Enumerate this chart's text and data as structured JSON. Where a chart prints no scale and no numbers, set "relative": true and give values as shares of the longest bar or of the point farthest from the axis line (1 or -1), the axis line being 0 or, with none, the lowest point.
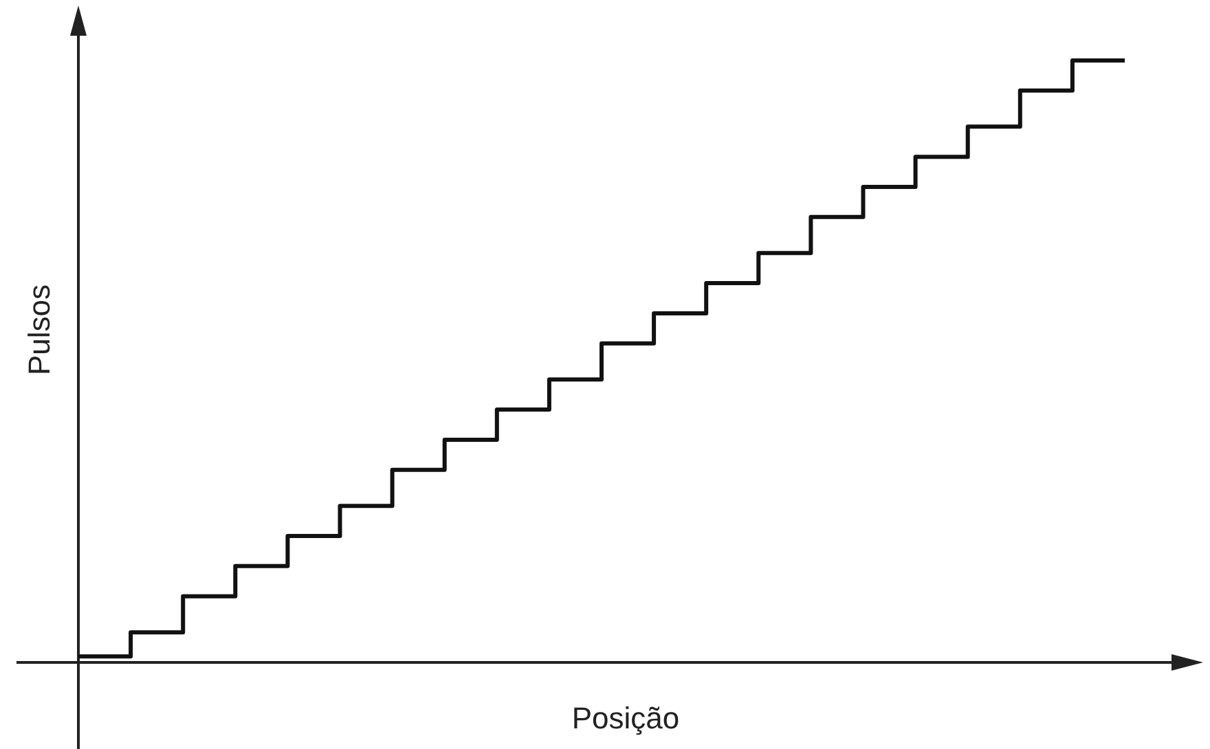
{
  "chart_data": {
    "type": "step",
    "xlabel": "Posição",
    "ylabel": "Pulsos",
    "relative": true,
    "color": "#111111",
    "categories": [
      null,
      null,
      null,
      null,
      null,
      null,
      null,
      null,
      null,
      null,
      null,
      null,
      null,
      null,
      null,
      null,
      null,
      null,
      null,
      null,
      null
    ],
    "values": [
      0.01,
      0.05,
      0.11,
      0.16,
      0.21,
      0.26,
      0.32,
      0.37,
      0.42,
      0.47,
      0.53,
      0.58,
      0.63,
      0.68,
      0.74,
      0.79,
      0.84,
      0.89,
      0.95,
      1,
      1
    ]
  }
}
